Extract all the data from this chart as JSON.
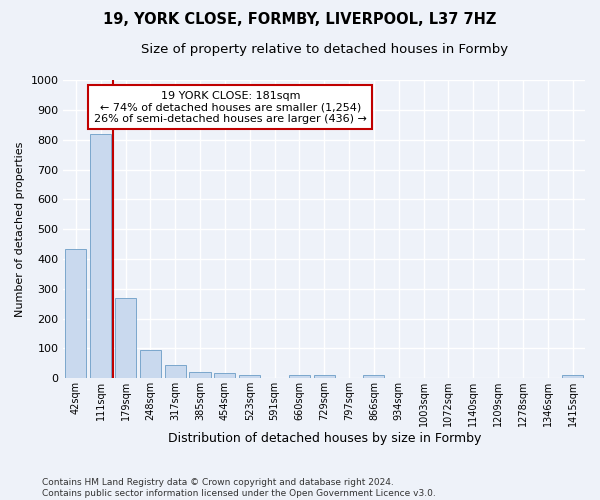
{
  "title1": "19, YORK CLOSE, FORMBY, LIVERPOOL, L37 7HZ",
  "title2": "Size of property relative to detached houses in Formby",
  "xlabel": "Distribution of detached houses by size in Formby",
  "ylabel": "Number of detached properties",
  "footnote": "Contains HM Land Registry data © Crown copyright and database right 2024.\nContains public sector information licensed under the Open Government Licence v3.0.",
  "bar_labels": [
    "42sqm",
    "111sqm",
    "179sqm",
    "248sqm",
    "317sqm",
    "385sqm",
    "454sqm",
    "523sqm",
    "591sqm",
    "660sqm",
    "729sqm",
    "797sqm",
    "866sqm",
    "934sqm",
    "1003sqm",
    "1072sqm",
    "1140sqm",
    "1209sqm",
    "1278sqm",
    "1346sqm",
    "1415sqm"
  ],
  "bar_values": [
    435,
    820,
    268,
    93,
    45,
    22,
    16,
    10,
    0,
    10,
    10,
    0,
    10,
    0,
    0,
    0,
    0,
    0,
    0,
    0,
    10
  ],
  "bar_color": "#c9d9ee",
  "bar_edge_color": "#7ba7cc",
  "vline_color": "#c00000",
  "annotation_text": "19 YORK CLOSE: 181sqm\n← 74% of detached houses are smaller (1,254)\n26% of semi-detached houses are larger (436) →",
  "annotation_box_color": "white",
  "annotation_box_edge": "#c00000",
  "ylim": [
    0,
    1000
  ],
  "yticks": [
    0,
    100,
    200,
    300,
    400,
    500,
    600,
    700,
    800,
    900,
    1000
  ],
  "background_color": "#eef2f9",
  "grid_color": "#ffffff",
  "title1_fontsize": 10.5,
  "title2_fontsize": 9.5,
  "bar_width": 0.85,
  "vline_index": 1.5
}
